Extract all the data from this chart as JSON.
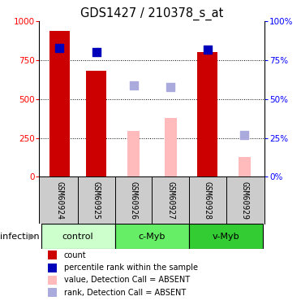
{
  "title": "GDS1427 / 210378_s_at",
  "samples": [
    "GSM60924",
    "GSM60925",
    "GSM60926",
    "GSM60927",
    "GSM60928",
    "GSM60929"
  ],
  "red_bars": [
    940,
    680,
    null,
    null,
    800,
    null
  ],
  "blue_squares": [
    830,
    800,
    null,
    null,
    820,
    null
  ],
  "pink_bars": [
    null,
    null,
    295,
    380,
    null,
    130
  ],
  "lavender_squares": [
    null,
    null,
    590,
    580,
    null,
    270
  ],
  "ylim": [
    0,
    1000
  ],
  "yticks": [
    0,
    250,
    500,
    750,
    1000
  ],
  "y2ticks_pct": [
    0,
    25,
    50,
    75,
    100
  ],
  "bar_width": 0.55,
  "red_color": "#cc0000",
  "blue_color": "#0000bb",
  "pink_color": "#ffbbbb",
  "lavender_color": "#aaaadd",
  "group_colors": [
    "#ccffcc",
    "#66ee66",
    "#33cc33"
  ],
  "group_names": [
    "control",
    "c-Myb",
    "v-Myb"
  ],
  "group_starts": [
    0,
    2,
    4
  ],
  "group_ends": [
    1,
    3,
    5
  ],
  "sample_bg": "#cccccc",
  "legend_labels": [
    "count",
    "percentile rank within the sample",
    "value, Detection Call = ABSENT",
    "rank, Detection Call = ABSENT"
  ],
  "infection_label": "infection"
}
